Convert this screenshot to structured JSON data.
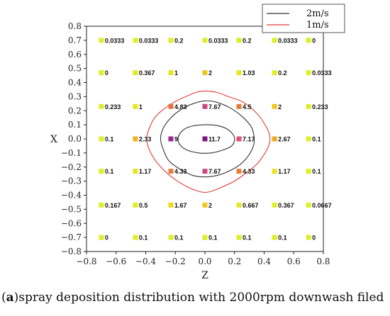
{
  "chart_data": {
    "type": "scatter",
    "xlabel": "Z",
    "ylabel": "X",
    "xlim": [
      -0.8,
      0.8
    ],
    "ylim": [
      -0.8,
      0.8
    ],
    "xticks": [
      "−0.8",
      "−0.6",
      "−0.4",
      "−0.2",
      "0.0",
      "0.2",
      "0.4",
      "0.6",
      "0.8"
    ],
    "yticks": [
      "0.8",
      "0.7",
      "0.6",
      "0.5",
      "0.4",
      "0.3",
      "0.2",
      "0.1",
      "0.0",
      "−0.1",
      "−0.2",
      "−0.3",
      "−0.4",
      "−0.5",
      "−0.6",
      "−0.7",
      "−0.8"
    ],
    "grid": false,
    "legend_position": "top-right",
    "legend": [
      {
        "label": "2m/s",
        "color": "#333333"
      },
      {
        "label": "1m/s",
        "color": "#e03a3a"
      }
    ],
    "point_columns_z": [
      -0.7,
      -0.47,
      -0.23,
      0.0,
      0.23,
      0.47,
      0.7
    ],
    "point_rows_x": [
      0.7,
      0.47,
      0.23,
      0.0,
      -0.23,
      -0.47,
      -0.7
    ],
    "points": [
      [
        {
          "label": "0.0333",
          "value": 0.0333
        },
        {
          "label": "0.0333",
          "value": 0.0333
        },
        {
          "label": "0.2",
          "value": 0.2
        },
        {
          "label": "0.0333",
          "value": 0.0333
        },
        {
          "label": "0.2",
          "value": 0.2
        },
        {
          "label": "0.0333",
          "value": 0.0333
        },
        {
          "label": "0",
          "value": 0
        }
      ],
      [
        {
          "label": "0",
          "value": 0
        },
        {
          "label": "0.367",
          "value": 0.367
        },
        {
          "label": "1",
          "value": 1
        },
        {
          "label": "2",
          "value": 2
        },
        {
          "label": "1.03",
          "value": 1.03
        },
        {
          "label": "0.2",
          "value": 0.2
        },
        {
          "label": "0.0333",
          "value": 0.0333
        }
      ],
      [
        {
          "label": "0.233",
          "value": 0.233
        },
        {
          "label": "1",
          "value": 1
        },
        {
          "label": "4.83",
          "value": 4.83
        },
        {
          "label": "7.67",
          "value": 7.67
        },
        {
          "label": "4.5",
          "value": 4.5
        },
        {
          "label": "2",
          "value": 2
        },
        {
          "label": "0.233",
          "value": 0.233
        }
      ],
      [
        {
          "label": "0.1",
          "value": 0.1
        },
        {
          "label": "2.33",
          "value": 2.33
        },
        {
          "label": "9",
          "value": 9
        },
        {
          "label": "11.7",
          "value": 11.7
        },
        {
          "label": "7.17",
          "value": 7.17
        },
        {
          "label": "2.67",
          "value": 2.67
        },
        {
          "label": "0.1",
          "value": 0.1
        }
      ],
      [
        {
          "label": "0.1",
          "value": 0.1
        },
        {
          "label": "1.17",
          "value": 1.17
        },
        {
          "label": "4.33",
          "value": 4.33
        },
        {
          "label": "7.67",
          "value": 7.67
        },
        {
          "label": "4.33",
          "value": 4.33
        },
        {
          "label": "1.17",
          "value": 1.17
        },
        {
          "label": "0.1",
          "value": 0.1
        }
      ],
      [
        {
          "label": "0.167",
          "value": 0.167
        },
        {
          "label": "0.5",
          "value": 0.5
        },
        {
          "label": "1.67",
          "value": 1.67
        },
        {
          "label": "2",
          "value": 2
        },
        {
          "label": "0.667",
          "value": 0.667
        },
        {
          "label": "0.367",
          "value": 0.367
        },
        {
          "label": "0.0667",
          "value": 0.0667
        }
      ],
      [
        {
          "label": "0",
          "value": 0
        },
        {
          "label": "0.1",
          "value": 0.1
        },
        {
          "label": "0.1",
          "value": 0.1
        },
        {
          "label": "0.1",
          "value": 0.1
        },
        {
          "label": "0.1",
          "value": 0.1
        },
        {
          "label": "0.1",
          "value": 0.1
        },
        {
          "label": "0",
          "value": 0
        }
      ]
    ],
    "contours": [
      {
        "name": "1m/s",
        "color": "#e03a3a",
        "points": [
          [
            0,
            0.34
          ],
          [
            0.08,
            0.33
          ],
          [
            0.16,
            0.3
          ],
          [
            0.24,
            0.27
          ],
          [
            0.3,
            0.23
          ],
          [
            0.36,
            0.17
          ],
          [
            0.4,
            0.11
          ],
          [
            0.43,
            0.05
          ],
          [
            0.44,
            0
          ],
          [
            0.43,
            -0.05
          ],
          [
            0.4,
            -0.11
          ],
          [
            0.35,
            -0.18
          ],
          [
            0.28,
            -0.24
          ],
          [
            0.2,
            -0.3
          ],
          [
            0.12,
            -0.34
          ],
          [
            0.05,
            -0.37
          ],
          [
            0,
            -0.38
          ],
          [
            -0.05,
            -0.37
          ],
          [
            -0.12,
            -0.34
          ],
          [
            -0.2,
            -0.29
          ],
          [
            -0.27,
            -0.23
          ],
          [
            -0.33,
            -0.16
          ],
          [
            -0.37,
            -0.09
          ],
          [
            -0.39,
            -0.03
          ],
          [
            -0.39,
            0.03
          ],
          [
            -0.37,
            0.09
          ],
          [
            -0.34,
            0.15
          ],
          [
            -0.28,
            0.21
          ],
          [
            -0.21,
            0.26
          ],
          [
            -0.13,
            0.3
          ],
          [
            -0.06,
            0.33
          ]
        ]
      },
      {
        "name": "2m/s",
        "color": "#333333",
        "points": [
          [
            0,
            0.27
          ],
          [
            0.08,
            0.26
          ],
          [
            0.17,
            0.22
          ],
          [
            0.25,
            0.16
          ],
          [
            0.31,
            0.09
          ],
          [
            0.33,
            0.03
          ],
          [
            0.33,
            -0.04
          ],
          [
            0.3,
            -0.11
          ],
          [
            0.24,
            -0.18
          ],
          [
            0.16,
            -0.23
          ],
          [
            0.08,
            -0.26
          ],
          [
            0,
            -0.27
          ],
          [
            -0.08,
            -0.26
          ],
          [
            -0.16,
            -0.22
          ],
          [
            -0.24,
            -0.16
          ],
          [
            -0.28,
            -0.08
          ],
          [
            -0.3,
            0
          ],
          [
            -0.28,
            0.08
          ],
          [
            -0.23,
            0.15
          ],
          [
            -0.16,
            0.21
          ],
          [
            -0.08,
            0.25
          ]
        ]
      },
      {
        "name": "inner",
        "color": "#333333",
        "points": [
          [
            0,
            0.1
          ],
          [
            0.08,
            0.095
          ],
          [
            0.15,
            0.07
          ],
          [
            0.19,
            0.03
          ],
          [
            0.2,
            -0.01
          ],
          [
            0.18,
            -0.05
          ],
          [
            0.12,
            -0.08
          ],
          [
            0.04,
            -0.1
          ],
          [
            -0.04,
            -0.1
          ],
          [
            -0.12,
            -0.08
          ],
          [
            -0.17,
            -0.04
          ],
          [
            -0.18,
            0.01
          ],
          [
            -0.15,
            0.06
          ],
          [
            -0.09,
            0.09
          ]
        ]
      }
    ]
  },
  "caption": {
    "prefix": "(",
    "letter": "a",
    "text": ")spray deposition distribution with 2000rpm downwash filed"
  }
}
